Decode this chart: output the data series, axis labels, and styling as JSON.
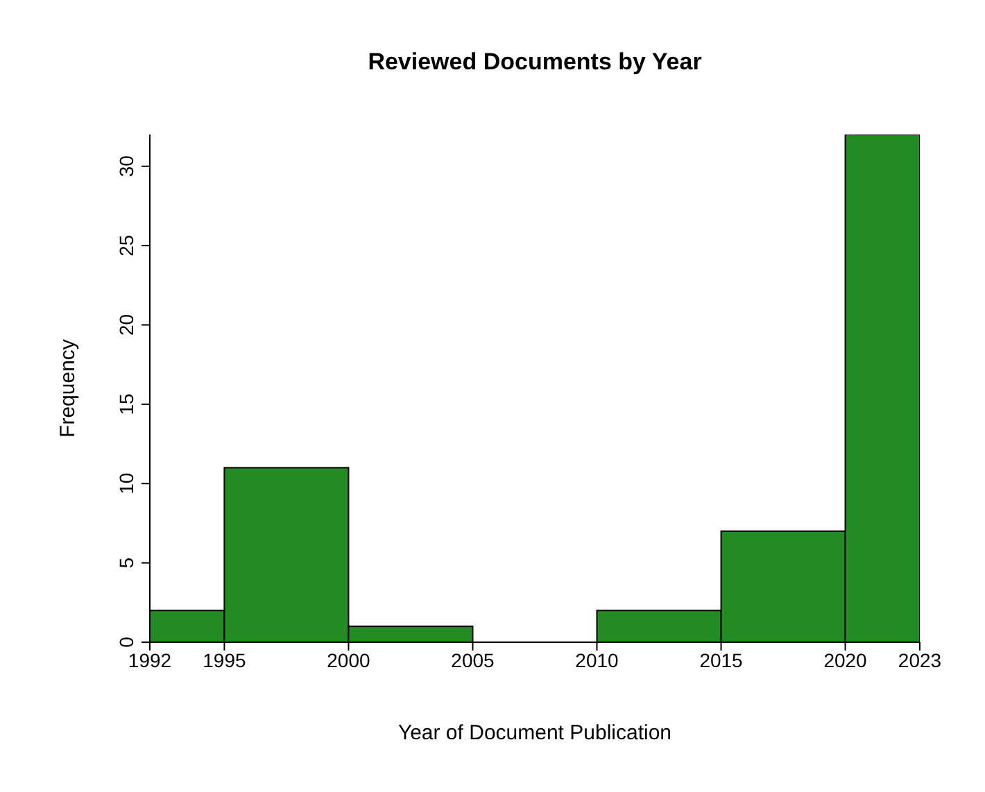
{
  "chart_data": {
    "type": "histogram",
    "title": "Reviewed Documents by Year",
    "xlabel": "Year of Document Publication",
    "ylabel": "Frequency",
    "bins": [
      1992,
      1995,
      2000,
      2005,
      2010,
      2015,
      2020,
      2023
    ],
    "values": [
      2,
      11,
      1,
      0,
      2,
      7,
      32
    ],
    "color": "#228b22",
    "xlim": [
      1992,
      2023
    ],
    "xticks": [
      1992,
      1995,
      2000,
      2005,
      2010,
      2015,
      2020,
      2023
    ],
    "ylim": [
      0,
      32
    ],
    "yticks": [
      0,
      5,
      10,
      15,
      20,
      25,
      30
    ],
    "grid": false,
    "legend": false
  }
}
